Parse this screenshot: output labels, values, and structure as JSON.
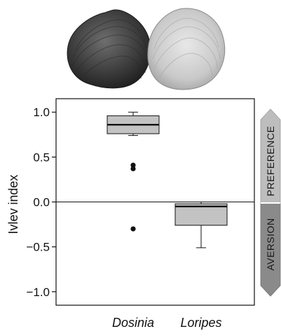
{
  "chart_data": {
    "type": "box",
    "title": "",
    "ylabel": "Ivlev index",
    "xlabel": "",
    "ylim": [
      -1.15,
      1.15
    ],
    "yticks": [
      1.0,
      0.5,
      0.0,
      -0.5,
      -1.0
    ],
    "ytick_labels": [
      "1.0",
      "0.5",
      "0.0",
      "−0.5",
      "−1.0"
    ],
    "categories": [
      "Dosinia",
      "Loripes"
    ],
    "boxes": [
      {
        "name": "Dosinia",
        "whisker_low": 0.74,
        "q1": 0.76,
        "median": 0.86,
        "q3": 0.96,
        "whisker_high": 1.0,
        "outliers": [
          0.41,
          0.37,
          -0.3
        ]
      },
      {
        "name": "Loripes",
        "whisker_low": -0.51,
        "q1": -0.26,
        "median": -0.05,
        "q3": -0.02,
        "whisker_high": 0.0,
        "outliers": []
      }
    ],
    "box_fill": "#c3c3c3",
    "reference_line": 0.0,
    "grid": false
  },
  "side_scale": {
    "upper_label": "PREFERENCE",
    "lower_label": "AVERSION",
    "upper_color": "#bdbdbd",
    "lower_color": "#8a8a8a"
  },
  "illustrations": [
    {
      "name": "Dosinia shell",
      "icon": "dark-clam-shell",
      "color": "#3e3e3e"
    },
    {
      "name": "Loripes shell",
      "icon": "pale-clam-shell",
      "color": "#c9c9c9"
    }
  ]
}
